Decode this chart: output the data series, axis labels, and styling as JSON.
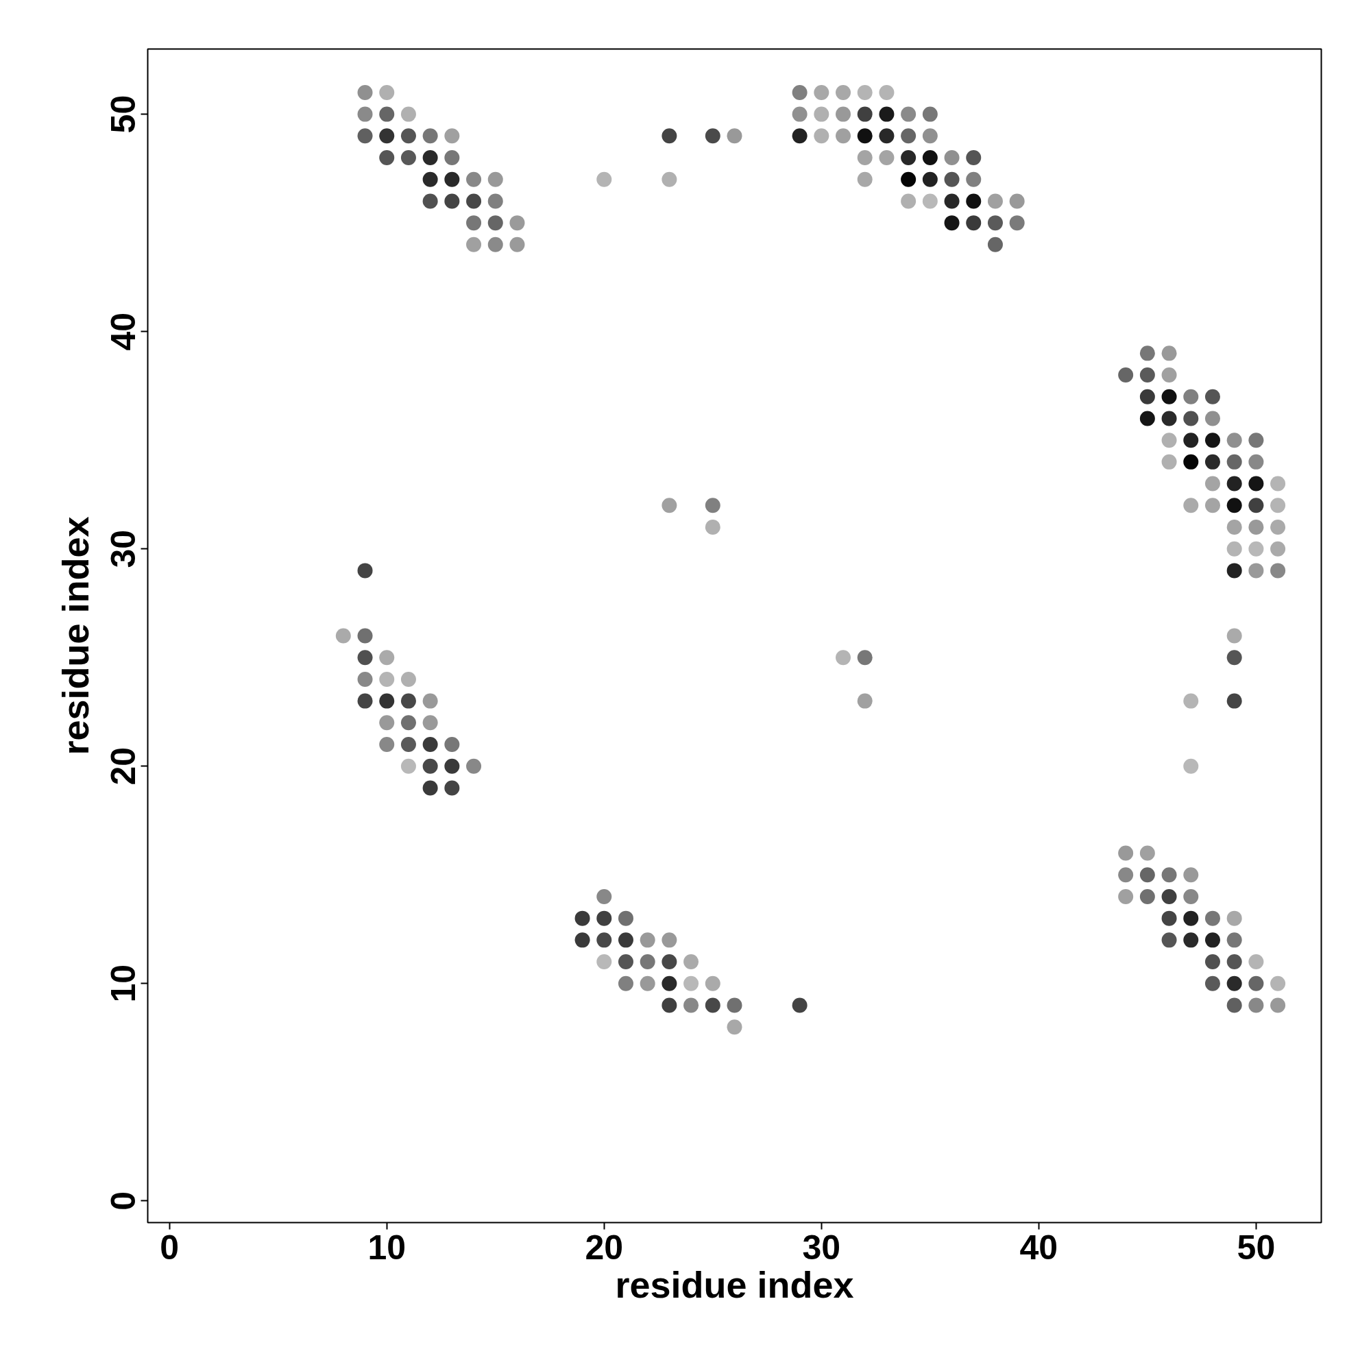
{
  "chart_data": {
    "type": "scatter",
    "xlabel": "residue index",
    "ylabel": "residue index",
    "xlim": [
      -1,
      53
    ],
    "ylim": [
      -1,
      53
    ],
    "xticks": [
      0,
      10,
      20,
      30,
      40,
      50
    ],
    "yticks": [
      0,
      10,
      20,
      30,
      40,
      50
    ],
    "marker": "circle",
    "grid": false,
    "series": [
      {
        "x": [
          9,
          10,
          29,
          30,
          31,
          32,
          33
        ],
        "values": [
          51,
          51,
          51,
          51,
          51,
          51,
          51
        ],
        "colors": [
          "#909090",
          "#b0b0b0",
          "#808080",
          "#a8a8a8",
          "#a8a8a8",
          "#b4b4b4",
          "#b4b4b4"
        ]
      },
      {
        "x": [
          9,
          10,
          11,
          29,
          30,
          31,
          32,
          33,
          34,
          35
        ],
        "values": [
          50,
          50,
          50,
          50,
          50,
          50,
          50,
          50,
          50,
          50
        ],
        "colors": [
          "#8a8a8a",
          "#666666",
          "#b0b0b0",
          "#909090",
          "#b0b0b0",
          "#999999",
          "#404040",
          "#1a1a1a",
          "#8a8a8a",
          "#777777"
        ]
      },
      {
        "x": [
          9,
          10,
          11,
          12,
          13,
          23,
          25,
          26,
          29,
          30,
          31,
          32,
          33,
          34,
          35
        ],
        "values": [
          49,
          49,
          49,
          49,
          49,
          49,
          49,
          49,
          49,
          49,
          49,
          49,
          49,
          49,
          49
        ],
        "colors": [
          "#606060",
          "#333333",
          "#555555",
          "#777777",
          "#a0a0a0",
          "#444444",
          "#4a4a4a",
          "#999999",
          "#222222",
          "#b0b0b0",
          "#a0a0a0",
          "#111111",
          "#282828",
          "#666666",
          "#909090"
        ]
      },
      {
        "x": [
          10,
          11,
          12,
          13,
          32,
          33,
          34,
          35,
          36,
          37
        ],
        "values": [
          48,
          48,
          48,
          48,
          48,
          48,
          48,
          48,
          48,
          48
        ],
        "colors": [
          "#555555",
          "#585858",
          "#2a2a2a",
          "#777777",
          "#a4a4a4",
          "#a4a4a4",
          "#282828",
          "#111111",
          "#909090",
          "#555555"
        ]
      },
      {
        "x": [
          12,
          13,
          14,
          15,
          20,
          23,
          32,
          34,
          35,
          36,
          37
        ],
        "values": [
          47,
          47,
          47,
          47,
          47,
          47,
          47,
          47,
          47,
          47,
          47
        ],
        "colors": [
          "#2a2a2a",
          "#2a2a2a",
          "#888888",
          "#999999",
          "#b4b4b4",
          "#b0b0b0",
          "#a8a8a8",
          "#050505",
          "#222222",
          "#555555",
          "#808080"
        ]
      },
      {
        "x": [
          12,
          13,
          14,
          15,
          34,
          35,
          36,
          37,
          38,
          39
        ],
        "values": [
          46,
          46,
          46,
          46,
          46,
          46,
          46,
          46,
          46,
          46
        ],
        "colors": [
          "#505050",
          "#444444",
          "#484848",
          "#808080",
          "#b0b0b0",
          "#b8b8b8",
          "#282828",
          "#111111",
          "#a0a0a0",
          "#999999"
        ]
      },
      {
        "x": [
          14,
          15,
          16,
          36,
          37,
          38,
          39
        ],
        "values": [
          45,
          45,
          45,
          45,
          45,
          45,
          45
        ],
        "colors": [
          "#777777",
          "#666666",
          "#9a9a9a",
          "#151515",
          "#3a3a3a",
          "#5a5a5a",
          "#7a7a7a"
        ]
      },
      {
        "x": [
          14,
          15,
          16,
          38
        ],
        "values": [
          44,
          44,
          44,
          44
        ],
        "colors": [
          "#a0a0a0",
          "#8a8a8a",
          "#9a9a9a",
          "#666666"
        ]
      },
      {
        "x": [
          45,
          46
        ],
        "values": [
          39,
          39
        ],
        "colors": [
          "#777777",
          "#999999"
        ]
      },
      {
        "x": [
          44,
          45,
          46
        ],
        "values": [
          38,
          38,
          38
        ],
        "colors": [
          "#666666",
          "#5a5a5a",
          "#a0a0a0"
        ]
      },
      {
        "x": [
          45,
          46,
          47,
          48
        ],
        "values": [
          37,
          37,
          37,
          37
        ],
        "colors": [
          "#3a3a3a",
          "#111111",
          "#808080",
          "#555555"
        ]
      },
      {
        "x": [
          45,
          46,
          47,
          48
        ],
        "values": [
          36,
          36,
          36,
          36
        ],
        "colors": [
          "#151515",
          "#2a2a2a",
          "#505050",
          "#909090"
        ]
      },
      {
        "x": [
          46,
          47,
          48,
          49,
          50
        ],
        "values": [
          35,
          35,
          35,
          35,
          35
        ],
        "colors": [
          "#b0b0b0",
          "#222222",
          "#151515",
          "#909090",
          "#777777"
        ]
      },
      {
        "x": [
          46,
          47,
          48,
          49,
          50
        ],
        "values": [
          34,
          34,
          34,
          34,
          34
        ],
        "colors": [
          "#b0b0b0",
          "#050505",
          "#2a2a2a",
          "#666666",
          "#888888"
        ]
      },
      {
        "x": [
          48,
          49,
          50,
          51
        ],
        "values": [
          33,
          33,
          33,
          33
        ],
        "colors": [
          "#a4a4a4",
          "#222222",
          "#151515",
          "#b4b4b4"
        ]
      },
      {
        "x": [
          23,
          25,
          47,
          48,
          49,
          50,
          51
        ],
        "values": [
          32,
          32,
          32,
          32,
          32,
          32,
          32
        ],
        "colors": [
          "#a0a0a0",
          "#808080",
          "#aaaaaa",
          "#a4a4a4",
          "#111111",
          "#404040",
          "#b4b4b4"
        ]
      },
      {
        "x": [
          25,
          49,
          50,
          51
        ],
        "values": [
          31,
          31,
          31,
          31
        ],
        "colors": [
          "#b0b0b0",
          "#a4a4a4",
          "#999999",
          "#aaaaaa"
        ]
      },
      {
        "x": [
          49,
          50,
          51
        ],
        "values": [
          30,
          30,
          30
        ],
        "colors": [
          "#b4b4b4",
          "#b8b8b8",
          "#aaaaaa"
        ]
      },
      {
        "x": [
          9,
          49,
          50,
          51
        ],
        "values": [
          29,
          29,
          29,
          29
        ],
        "colors": [
          "#444444",
          "#222222",
          "#999999",
          "#888888"
        ]
      },
      {
        "x": [
          8,
          9,
          49
        ],
        "values": [
          26,
          26,
          26
        ],
        "colors": [
          "#aaaaaa",
          "#707070",
          "#aaaaaa"
        ]
      },
      {
        "x": [
          9,
          10,
          31,
          32,
          49
        ],
        "values": [
          25,
          25,
          25,
          25,
          25
        ],
        "colors": [
          "#505050",
          "#aaaaaa",
          "#b4b4b4",
          "#777777",
          "#555555"
        ]
      },
      {
        "x": [
          9,
          10,
          11
        ],
        "values": [
          24,
          24,
          24
        ],
        "colors": [
          "#888888",
          "#b4b4b4",
          "#b0b0b0"
        ]
      },
      {
        "x": [
          9,
          10,
          11,
          12,
          32,
          47,
          49
        ],
        "values": [
          23,
          23,
          23,
          23,
          23,
          23,
          23
        ],
        "colors": [
          "#444444",
          "#333333",
          "#484848",
          "#999999",
          "#a0a0a0",
          "#b4b4b4",
          "#444444"
        ]
      },
      {
        "x": [
          10,
          11,
          12
        ],
        "values": [
          22,
          22,
          22
        ],
        "colors": [
          "#999999",
          "#707070",
          "#999999"
        ]
      },
      {
        "x": [
          10,
          11,
          12,
          13
        ],
        "values": [
          21,
          21,
          21,
          21
        ],
        "colors": [
          "#888888",
          "#5a5a5a",
          "#3a3a3a",
          "#777777"
        ]
      },
      {
        "x": [
          11,
          12,
          13,
          14,
          47
        ],
        "values": [
          20,
          20,
          20,
          20,
          20
        ],
        "colors": [
          "#b8b8b8",
          "#484848",
          "#3a3a3a",
          "#888888",
          "#b8b8b8"
        ]
      },
      {
        "x": [
          12,
          13
        ],
        "values": [
          19,
          19
        ],
        "colors": [
          "#3a3a3a",
          "#444444"
        ]
      },
      {
        "x": [
          44,
          45
        ],
        "values": [
          16,
          16
        ],
        "colors": [
          "#999999",
          "#a0a0a0"
        ]
      },
      {
        "x": [
          44,
          45,
          46,
          47
        ],
        "values": [
          15,
          15,
          15,
          15
        ],
        "colors": [
          "#888888",
          "#666666",
          "#777777",
          "#999999"
        ]
      },
      {
        "x": [
          20,
          44,
          45,
          46,
          47
        ],
        "values": [
          14,
          14,
          14,
          14,
          14
        ],
        "colors": [
          "#888888",
          "#a0a0a0",
          "#707070",
          "#404040",
          "#888888"
        ]
      },
      {
        "x": [
          19,
          20,
          21,
          46,
          47,
          48,
          49
        ],
        "values": [
          13,
          13,
          13,
          13,
          13,
          13,
          13
        ],
        "colors": [
          "#3a3a3a",
          "#404040",
          "#707070",
          "#444444",
          "#222222",
          "#777777",
          "#a8a8a8"
        ]
      },
      {
        "x": [
          19,
          20,
          21,
          22,
          23,
          46,
          47,
          48,
          49
        ],
        "values": [
          12,
          12,
          12,
          12,
          12,
          12,
          12,
          12,
          12
        ],
        "colors": [
          "#3a3a3a",
          "#484848",
          "#3a3a3a",
          "#999999",
          "#999999",
          "#555555",
          "#2a2a2a",
          "#222222",
          "#777777"
        ]
      },
      {
        "x": [
          20,
          21,
          22,
          23,
          24,
          48,
          49,
          50
        ],
        "values": [
          11,
          11,
          11,
          11,
          11,
          11,
          11,
          11
        ],
        "colors": [
          "#b8b8b8",
          "#555555",
          "#777777",
          "#484848",
          "#aaaaaa",
          "#505050",
          "#555555",
          "#b4b4b4"
        ]
      },
      {
        "x": [
          21,
          22,
          23,
          24,
          25,
          48,
          49,
          50,
          51
        ],
        "values": [
          10,
          10,
          10,
          10,
          10,
          10,
          10,
          10,
          10
        ],
        "colors": [
          "#808080",
          "#999999",
          "#2a2a2a",
          "#b8b8b8",
          "#aaaaaa",
          "#5a5a5a",
          "#2a2a2a",
          "#666666",
          "#b4b4b4"
        ]
      },
      {
        "x": [
          23,
          24,
          25,
          26,
          29,
          49,
          50,
          51
        ],
        "values": [
          9,
          9,
          9,
          9,
          9,
          9,
          9,
          9
        ],
        "colors": [
          "#404040",
          "#888888",
          "#484848",
          "#707070",
          "#444444",
          "#606060",
          "#888888",
          "#999999"
        ]
      },
      {
        "x": [
          26
        ],
        "values": [
          8
        ],
        "colors": [
          "#a8a8a8"
        ]
      }
    ]
  }
}
